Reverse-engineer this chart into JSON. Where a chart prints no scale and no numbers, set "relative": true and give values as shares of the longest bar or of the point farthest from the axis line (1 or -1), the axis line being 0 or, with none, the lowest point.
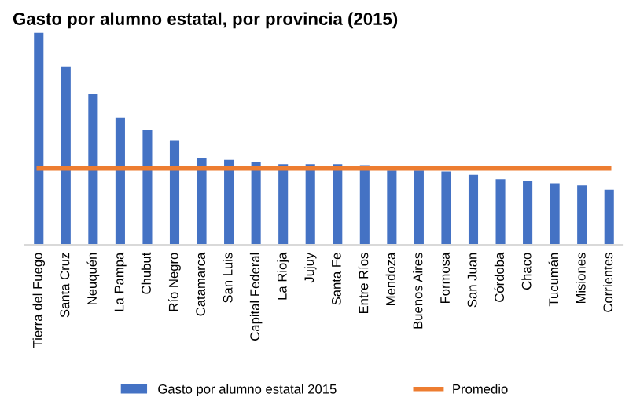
{
  "chart_data": {
    "type": "bar",
    "title": "Gasto por alumno estatal, por provincia (2015)",
    "relative": true,
    "tick_labels": "x",
    "legend": "bottom",
    "categories": [
      "Tierra del Fuego",
      "Santa Cruz",
      "Neuquén",
      "La Pampa",
      "Chubut",
      "Río Negro",
      "Catamarca",
      "San Luis",
      "Capital Federal",
      "La Rioja",
      "Jujuy",
      "Santa Fe",
      "Entre Ríos",
      "Mendoza",
      "Buenos Aires",
      "Formosa",
      "San Juan",
      "Córdoba",
      "Chaco",
      "Tucumán",
      "Misiones",
      "Corrientes"
    ],
    "series": [
      {
        "name": "Gasto por alumno estatal 2015",
        "color": "#4472c4",
        "values": [
          1,
          0.84,
          0.71,
          0.6,
          0.54,
          0.49,
          0.41,
          0.4,
          0.39,
          0.38,
          0.38,
          0.38,
          0.375,
          0.35,
          0.35,
          0.346,
          0.33,
          0.31,
          0.3,
          0.29,
          0.28,
          0.26
        ]
      },
      {
        "name": "Promedio",
        "type": "line",
        "color": "#ed7d31",
        "values": [
          0.36,
          0.36,
          0.36,
          0.36,
          0.36,
          0.36,
          0.36,
          0.36,
          0.36,
          0.36,
          0.36,
          0.36,
          0.36,
          0.36,
          0.36,
          0.36,
          0.36,
          0.36,
          0.36,
          0.36,
          0.36,
          0.36
        ]
      }
    ]
  }
}
